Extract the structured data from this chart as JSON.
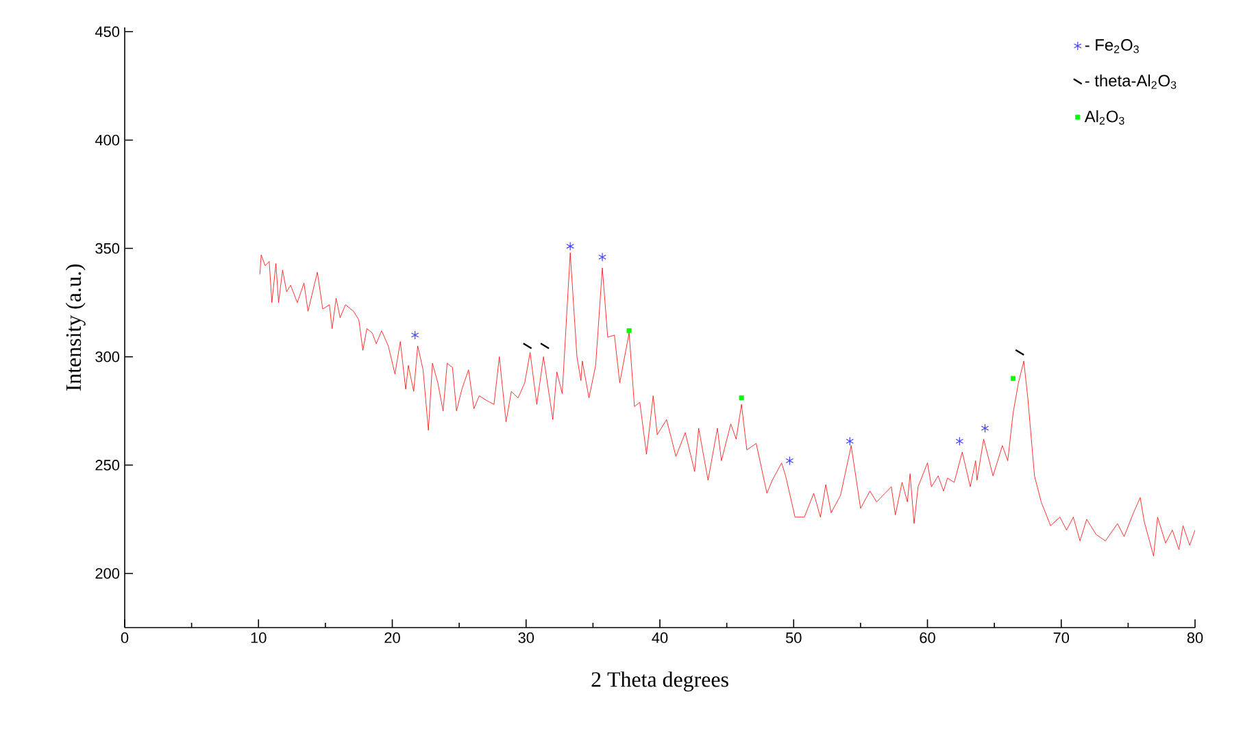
{
  "chart_data": {
    "type": "line",
    "xlabel": "2 Theta degrees",
    "ylabel": "Intensity (a.u.)",
    "xlim": [
      0,
      80
    ],
    "xticks": [
      0,
      10,
      20,
      30,
      40,
      50,
      60,
      70,
      80
    ],
    "ylim": [
      175,
      452
    ],
    "yticks": [
      200,
      250,
      300,
      350,
      400,
      450
    ],
    "legend": "top right",
    "series": [
      {
        "color": "#ff0000",
        "x": [
          10.1,
          10.2,
          10.5,
          10.8,
          11.0,
          11.3,
          11.5,
          11.8,
          12.1,
          12.4,
          12.9,
          13.4,
          13.7,
          14.4,
          14.8,
          15.3,
          15.5,
          15.8,
          16.1,
          16.5,
          17.1,
          17.5,
          17.8,
          18.1,
          18.5,
          18.8,
          19.2,
          19.7,
          20.2,
          20.6,
          21.0,
          21.2,
          21.6,
          21.9,
          22.3,
          22.7,
          23.0,
          23.4,
          23.8,
          24.1,
          24.5,
          24.8,
          25.2,
          25.7,
          26.1,
          26.5,
          27.0,
          27.6,
          28.0,
          28.5,
          28.9,
          29.4,
          29.9,
          30.3,
          30.8,
          31.3,
          32.0,
          32.3,
          32.7,
          33.3,
          33.8,
          34.1,
          34.2,
          34.7,
          35.2,
          35.7,
          36.1,
          36.6,
          37.0,
          37.7,
          38.1,
          38.5,
          39.0,
          39.5,
          39.8,
          40.5,
          41.2,
          41.9,
          42.6,
          42.9,
          43.6,
          44.3,
          44.6,
          45.3,
          45.7,
          46.1,
          46.5,
          47.2,
          48.0,
          48.4,
          49.1,
          49.4,
          50.1,
          50.8,
          51.5,
          52.0,
          52.4,
          52.8,
          53.5,
          54.3,
          55.0,
          55.7,
          56.2,
          57.3,
          57.6,
          58.1,
          58.5,
          58.7,
          59.0,
          59.3,
          60.0,
          60.3,
          60.8,
          61.2,
          61.5,
          62.0,
          62.6,
          63.2,
          63.6,
          63.7,
          64.2,
          64.9,
          65.6,
          66.0,
          66.4,
          66.8,
          67.2,
          67.5,
          68.0,
          68.5,
          69.2,
          69.9,
          70.4,
          70.9,
          71.4,
          71.9,
          72.6,
          73.3,
          74.2,
          74.7,
          75.4,
          75.9,
          76.2,
          76.9,
          77.2,
          77.8,
          78.3,
          78.8,
          79.1,
          79.6,
          80.0
        ],
        "values": [
          338,
          347,
          342,
          344,
          325,
          343,
          325,
          340,
          330,
          333,
          325,
          334,
          321,
          339,
          322,
          324,
          313,
          327,
          318,
          324,
          321,
          317,
          303,
          313,
          311,
          306,
          312,
          305,
          292,
          307,
          285,
          296,
          284,
          305,
          294,
          266,
          297,
          288,
          275,
          297,
          295,
          275,
          285,
          294,
          276,
          282,
          280,
          278,
          300,
          270,
          284,
          281,
          288,
          302,
          278,
          300,
          271,
          293,
          283,
          348,
          300,
          289,
          298,
          281,
          296,
          341,
          309,
          310,
          288,
          311,
          277,
          279,
          255,
          282,
          264,
          271,
          254,
          265,
          247,
          267,
          243,
          267,
          252,
          269,
          262,
          278,
          257,
          260,
          237,
          243,
          251,
          245,
          226,
          226,
          237,
          226,
          241,
          228,
          236,
          259,
          230,
          238,
          233,
          240,
          227,
          242,
          233,
          246,
          223,
          240,
          251,
          240,
          245,
          238,
          244,
          242,
          256,
          240,
          252,
          243,
          262,
          245,
          259,
          252,
          274,
          288,
          298,
          281,
          245,
          233,
          222,
          226,
          220,
          226,
          215,
          225,
          218,
          215,
          223,
          217,
          228,
          235,
          224,
          208,
          226,
          214,
          220,
          211,
          222,
          213,
          220
        ]
      },
      {
        "type": "scatter",
        "name": "- Fe$_{2}$O$_{3}$",
        "color": "#4040ff",
        "marker": "cross",
        "x": [
          21.7,
          33.3,
          35.7,
          49.7,
          54.2,
          62.4,
          64.3
        ],
        "values": [
          310,
          351,
          346,
          252,
          261,
          261,
          267
        ]
      },
      {
        "type": "scatter",
        "name": "- theta-Al$_{2}$O$_{3}$",
        "color": "#000000",
        "marker": "cross",
        "x": [
          30.1,
          31.4,
          66.9
        ],
        "values": [
          305,
          305,
          302
        ]
      },
      {
        "type": "scatter",
        "name": "Al$_{2}$O$_{3}$",
        "color": "#00ff00",
        "marker": "square",
        "x": [
          37.7,
          46.1,
          66.4
        ],
        "values": [
          312,
          281,
          290
        ]
      }
    ]
  }
}
